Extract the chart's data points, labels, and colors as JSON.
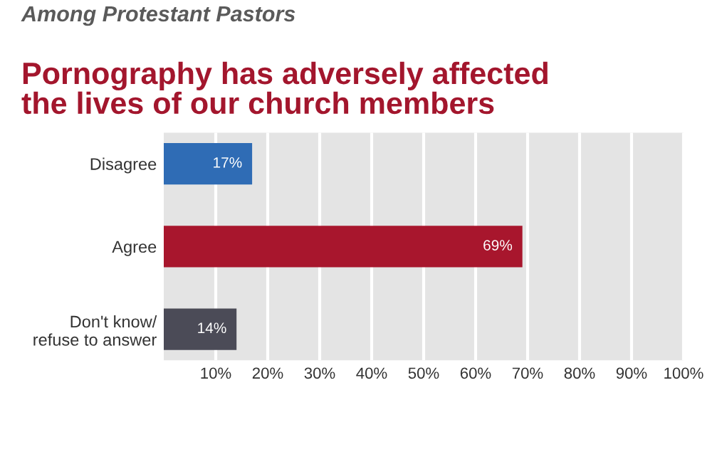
{
  "chart_data": {
    "type": "bar",
    "orientation": "horizontal",
    "subtitle": "Among Protestant Pastors",
    "title": "Pornography has adversely affected\nthe lives of our church members",
    "categories": [
      "Disagree",
      "Agree",
      "Don't know/\nrefuse to answer"
    ],
    "values": [
      17,
      69,
      14
    ],
    "colors": [
      "#2f6cb5",
      "#a8162d",
      "#4b4b57"
    ],
    "value_labels": [
      "17%",
      "69%",
      "14%"
    ],
    "xlim": [
      0,
      100
    ],
    "xticks": [
      {
        "value": 10,
        "label": "10%"
      },
      {
        "value": 20,
        "label": "20%"
      },
      {
        "value": 30,
        "label": "30%"
      },
      {
        "value": 40,
        "label": "40%"
      },
      {
        "value": 50,
        "label": "50%"
      },
      {
        "value": 60,
        "label": "60%"
      },
      {
        "value": 70,
        "label": "70%"
      },
      {
        "value": 80,
        "label": "80%"
      },
      {
        "value": 90,
        "label": "90%"
      },
      {
        "value": 100,
        "label": "100%"
      }
    ],
    "grid": "x"
  }
}
